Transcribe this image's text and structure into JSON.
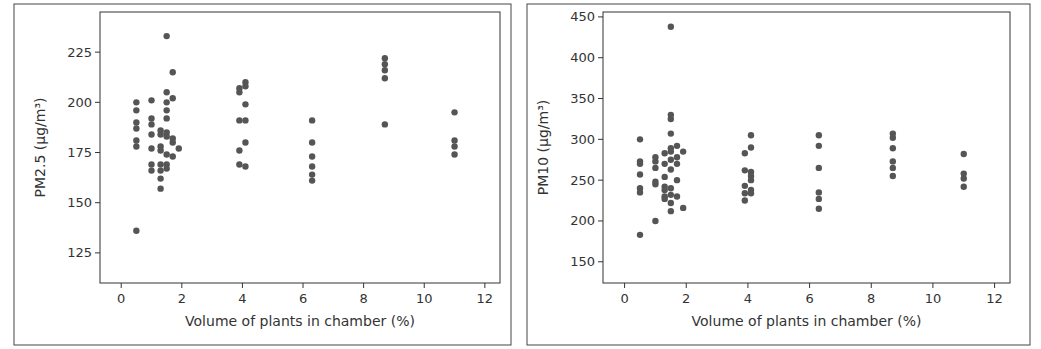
{
  "chart_data": [
    {
      "type": "scatter",
      "x_label": "Volume of plants in chamber (%)",
      "y_label": "PM2.5 (μg/m³)",
      "color": "#555555",
      "marker": "circle",
      "grid": false,
      "xlim": [
        -0.7,
        12.5
      ],
      "ylim": [
        110,
        245
      ],
      "xticks": [
        0,
        2,
        4,
        6,
        8,
        10,
        12
      ],
      "yticks": [
        125,
        150,
        175,
        200,
        225
      ],
      "x": [
        0.5,
        0.5,
        0.5,
        0.5,
        0.5,
        0.5,
        0.5,
        1.0,
        1.0,
        1.0,
        1.0,
        1.0,
        1.0,
        1.0,
        1.3,
        1.3,
        1.3,
        1.3,
        1.3,
        1.3,
        1.3,
        1.3,
        1.5,
        1.5,
        1.5,
        1.5,
        1.5,
        1.5,
        1.5,
        1.5,
        1.5,
        1.5,
        1.7,
        1.7,
        1.7,
        1.7,
        1.7,
        1.9,
        3.9,
        3.9,
        3.9,
        3.9,
        3.9,
        4.1,
        4.1,
        4.1,
        4.1,
        4.1,
        4.1,
        6.3,
        6.3,
        6.3,
        6.3,
        6.3,
        6.3,
        8.7,
        8.7,
        8.7,
        8.7,
        8.7,
        11.0,
        11.0,
        11.0,
        11.0
      ],
      "values": [
        200,
        196,
        190,
        187,
        181,
        178,
        136,
        201,
        192,
        189,
        184,
        169,
        166,
        177,
        186,
        178,
        169,
        166,
        162,
        157,
        184,
        176,
        233,
        205,
        200,
        196,
        192,
        185,
        183,
        174,
        169,
        167,
        215,
        202,
        182,
        180,
        173,
        177,
        207,
        205,
        191,
        176,
        169,
        210,
        208,
        199,
        191,
        180,
        168,
        191,
        180,
        173,
        168,
        164,
        161,
        222,
        219,
        216,
        212,
        189,
        195,
        181,
        178,
        174
      ]
    },
    {
      "type": "scatter",
      "x_label": "Volume of plants in chamber (%)",
      "y_label": "PM10 (μg/m³)",
      "color": "#555555",
      "marker": "circle",
      "grid": false,
      "xlim": [
        -0.7,
        12.5
      ],
      "ylim": [
        124,
        456
      ],
      "xticks": [
        0,
        2,
        4,
        6,
        8,
        10,
        12
      ],
      "yticks": [
        150,
        200,
        250,
        300,
        350,
        400,
        450
      ],
      "x": [
        0.5,
        0.5,
        0.5,
        0.5,
        0.5,
        0.5,
        0.5,
        1.0,
        1.0,
        1.0,
        1.0,
        1.0,
        1.0,
        1.3,
        1.3,
        1.3,
        1.3,
        1.3,
        1.3,
        1.3,
        1.5,
        1.5,
        1.5,
        1.5,
        1.5,
        1.5,
        1.5,
        1.5,
        1.5,
        1.5,
        1.5,
        1.5,
        1.7,
        1.7,
        1.7,
        1.7,
        1.7,
        1.9,
        1.9,
        3.9,
        3.9,
        3.9,
        3.9,
        3.9,
        4.1,
        4.1,
        4.1,
        4.1,
        4.1,
        4.1,
        4.1,
        6.3,
        6.3,
        6.3,
        6.3,
        6.3,
        6.3,
        8.7,
        8.7,
        8.7,
        8.7,
        8.7,
        8.7,
        11.0,
        11.0,
        11.0,
        11.0
      ],
      "values": [
        300,
        273,
        270,
        257,
        240,
        235,
        183,
        278,
        273,
        265,
        248,
        245,
        200,
        283,
        270,
        254,
        242,
        238,
        230,
        227,
        438,
        330,
        325,
        307,
        289,
        285,
        275,
        263,
        240,
        232,
        222,
        212,
        292,
        278,
        270,
        250,
        230,
        285,
        216,
        283,
        262,
        243,
        234,
        225,
        305,
        290,
        260,
        255,
        250,
        238,
        234,
        305,
        292,
        265,
        235,
        227,
        215,
        307,
        302,
        289,
        273,
        265,
        255,
        282,
        258,
        252,
        242
      ]
    }
  ]
}
